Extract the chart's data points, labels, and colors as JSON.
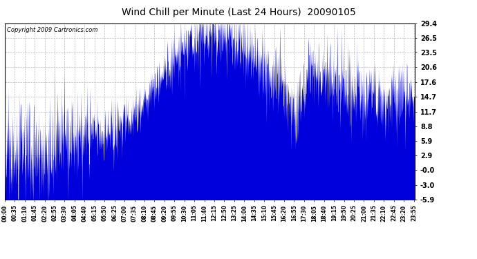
{
  "title": "Wind Chill per Minute (Last 24 Hours)  20090105",
  "copyright": "Copyright 2009 Cartronics.com",
  "yticks": [
    29.4,
    26.5,
    23.5,
    20.6,
    17.6,
    14.7,
    11.7,
    8.8,
    5.9,
    2.9,
    -0.0,
    -3.0,
    -5.9
  ],
  "ylim": [
    -5.9,
    29.4
  ],
  "line_color": "#0000dd",
  "bg_color": "#ffffff",
  "grid_color": "#bbbbbb",
  "xtick_labels": [
    "00:00",
    "00:35",
    "01:10",
    "01:45",
    "02:20",
    "02:55",
    "03:30",
    "04:05",
    "04:40",
    "05:15",
    "05:50",
    "06:25",
    "07:00",
    "07:35",
    "08:10",
    "08:45",
    "09:20",
    "09:55",
    "10:30",
    "11:05",
    "11:40",
    "12:15",
    "12:50",
    "13:25",
    "14:00",
    "14:35",
    "15:10",
    "15:45",
    "16:20",
    "16:55",
    "17:30",
    "18:05",
    "18:40",
    "19:15",
    "19:50",
    "20:25",
    "21:00",
    "21:35",
    "22:10",
    "22:45",
    "23:20",
    "23:55"
  ],
  "num_minutes": 1440,
  "title_fontsize": 10,
  "copyright_fontsize": 6,
  "tick_fontsize": 7
}
